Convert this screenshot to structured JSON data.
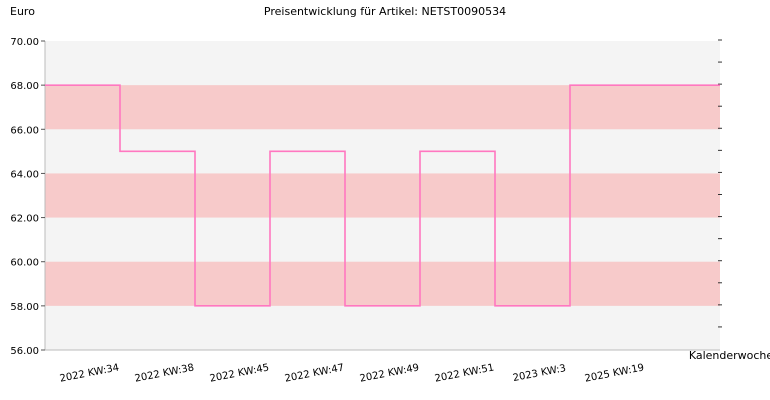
{
  "chart_data": {
    "type": "line",
    "step": true,
    "title": "Preisentwicklung für Artikel: NETST0090534",
    "ylabel": "Euro",
    "xlabel": "Kalenderwoche",
    "ylim": [
      56,
      70
    ],
    "ytick_step": 2,
    "ytick_decimals": 2,
    "categories": [
      "2022 KW:34",
      "2022 KW:38",
      "2022 KW:45",
      "2022 KW:47",
      "2022 KW:49",
      "2022 KW:51",
      "2023 KW:3",
      "2025 KW:19"
    ],
    "series": [
      {
        "values": [
          68,
          65,
          58,
          65,
          58,
          65,
          58,
          68
        ],
        "color": "#ff77c0"
      }
    ],
    "band_colors": {
      "stripe": "#f7caca",
      "background": "#f4f4f4"
    },
    "grid": false,
    "legend": "none"
  }
}
